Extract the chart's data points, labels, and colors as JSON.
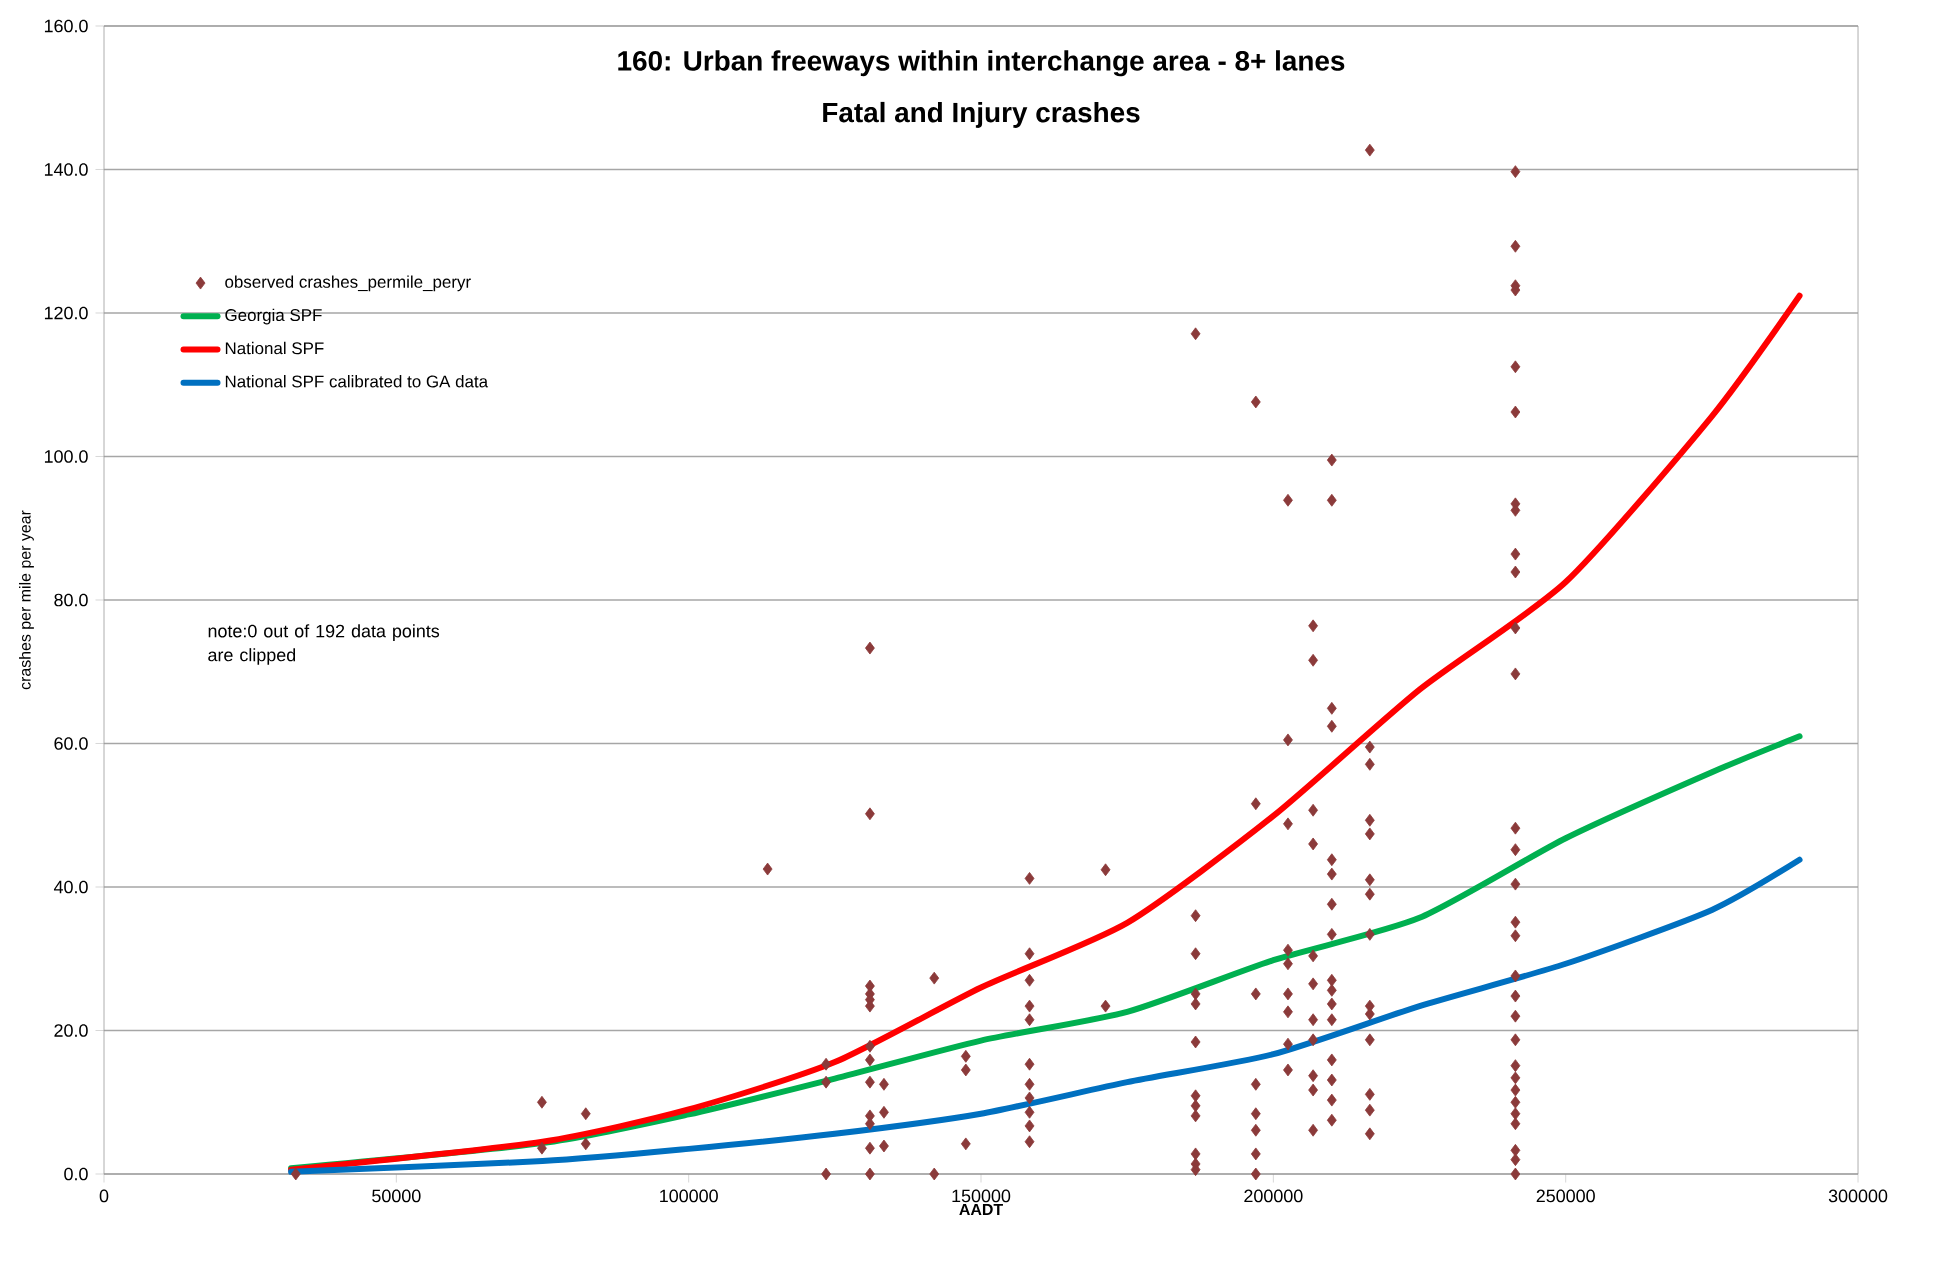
{
  "chart_data": {
    "type": "scatter",
    "title": "160: Urban freeways within interchange area - 8+ lanes",
    "subtitle": "Fatal and Injury crashes",
    "xlabel": "AADT",
    "ylabel": "crashes per mile per year",
    "xlim": [
      0,
      300000
    ],
    "ylim": [
      0,
      160
    ],
    "xticks": [
      0,
      50000,
      100000,
      150000,
      200000,
      250000,
      300000
    ],
    "yticks": [
      {
        "value": 0,
        "label": "0.0"
      },
      {
        "value": 20,
        "label": "20.0"
      },
      {
        "value": 40,
        "label": "40.0"
      },
      {
        "value": 60,
        "label": "60.0"
      },
      {
        "value": 80,
        "label": "80.0"
      },
      {
        "value": 100,
        "label": "100.0"
      },
      {
        "value": 120,
        "label": "120.0"
      },
      {
        "value": 140,
        "label": "140.0"
      },
      {
        "value": 160,
        "label": "160.0"
      }
    ],
    "grid": "y",
    "legend": "top left",
    "annotations": [
      "note:0 out of 192 data points are clipped"
    ],
    "series": [
      {
        "name": "observed crashes_permile_peryr",
        "marker": "diamond",
        "color": "#8b3a3a",
        "x": [
          32800,
          74900,
          74900,
          82400,
          82400,
          113500,
          123500,
          123500,
          123500,
          131000,
          131000,
          131000,
          131000,
          131000,
          131000,
          131000,
          131000,
          131000,
          131000,
          131000,
          131000,
          131000,
          133400,
          133400,
          133400,
          142000,
          142000,
          147400,
          147400,
          147400,
          158300,
          158300,
          158300,
          158300,
          158300,
          158300,
          158300,
          158300,
          158300,
          158300,
          158300,
          171300,
          171300,
          186700,
          186700,
          186700,
          186700,
          186700,
          186700,
          186700,
          186700,
          186700,
          186700,
          186700,
          186700,
          197000,
          197000,
          197000,
          197000,
          197000,
          197000,
          197000,
          197000,
          202500,
          202500,
          202500,
          202500,
          202500,
          202500,
          202500,
          202500,
          202500,
          206800,
          206800,
          206800,
          206800,
          206800,
          206800,
          206800,
          206800,
          206800,
          206800,
          206800,
          210000,
          210000,
          210000,
          210000,
          210000,
          210000,
          210000,
          210000,
          210000,
          210000,
          210000,
          210000,
          210000,
          210000,
          210000,
          210000,
          216500,
          216500,
          216500,
          216500,
          216500,
          216500,
          216500,
          216500,
          216500,
          216500,
          216500,
          216500,
          216500,
          216500,
          241400,
          241400,
          241400,
          241400,
          241400,
          241400,
          241400,
          241400,
          241400,
          241400,
          241400,
          241400,
          241400,
          241400,
          241400,
          241400,
          241400,
          241400,
          241400,
          241400,
          241400,
          241400,
          241400,
          241400,
          241400,
          241400,
          241400,
          241400,
          241400,
          241400
        ],
        "values": [
          0,
          10.0,
          3.6,
          8.4,
          4.2,
          42.5,
          15.3,
          12.8,
          0,
          73.3,
          50.2,
          26.2,
          25.1,
          24.3,
          23.4,
          17.8,
          15.9,
          12.8,
          8.1,
          7.0,
          3.6,
          0,
          12.5,
          8.6,
          3.9,
          27.3,
          0,
          16.4,
          14.5,
          4.2,
          41.2,
          30.7,
          27.0,
          23.4,
          21.5,
          15.3,
          12.5,
          10.6,
          8.6,
          6.7,
          4.5,
          42.4,
          23.4,
          117.1,
          36.0,
          30.7,
          25.1,
          23.7,
          18.4,
          10.9,
          9.5,
          8.1,
          2.8,
          1.4,
          0.6,
          107.6,
          51.6,
          25.1,
          12.5,
          8.4,
          6.1,
          2.8,
          0,
          93.9,
          60.5,
          48.8,
          31.2,
          29.3,
          25.1,
          22.6,
          18.1,
          14.5,
          76.4,
          71.6,
          50.7,
          46.0,
          30.4,
          26.5,
          21.5,
          18.7,
          13.7,
          11.7,
          6.1,
          99.5,
          93.9,
          64.9,
          62.4,
          43.8,
          41.8,
          37.6,
          33.4,
          27.0,
          25.6,
          23.7,
          21.5,
          15.9,
          13.1,
          10.3,
          7.5,
          142.7,
          59.5,
          57.1,
          49.3,
          47.4,
          41.0,
          39.0,
          33.4,
          23.4,
          22.3,
          18.7,
          11.1,
          8.9,
          5.6,
          139.7,
          129.3,
          123.8,
          123.2,
          112.5,
          106.2,
          93.4,
          92.5,
          86.4,
          83.9,
          76.1,
          69.7,
          48.2,
          45.2,
          40.4,
          35.1,
          33.2,
          27.6,
          24.8,
          22.0,
          18.7,
          15.1,
          13.4,
          11.7,
          10.0,
          8.4,
          7.0,
          3.3,
          2.0,
          0
        ]
      },
      {
        "name": "Georgia SPF",
        "type": "line",
        "marker": "none",
        "color": "#00b050",
        "x": [
          32000,
          75000,
          100000,
          125000,
          150000,
          175000,
          200000,
          225000,
          250000,
          275000,
          290000
        ],
        "values": [
          0.8,
          4.3,
          8.3,
          13.3,
          18.6,
          22.6,
          29.8,
          35.7,
          46.8,
          56.0,
          61.0
        ]
      },
      {
        "name": "National SPF",
        "type": "line",
        "marker": "none",
        "color": "#ff0000",
        "x": [
          32000,
          75000,
          100000,
          125000,
          150000,
          175000,
          200000,
          225000,
          250000,
          275000,
          290000
        ],
        "values": [
          0.6,
          4.5,
          9.0,
          15.6,
          26.0,
          35.0,
          49.9,
          67.5,
          82.5,
          105.6,
          122.4
        ]
      },
      {
        "name": "National SPF calibrated to GA data",
        "type": "line",
        "marker": "none",
        "color": "#0070c0",
        "x": [
          32000,
          75000,
          100000,
          125000,
          150000,
          175000,
          200000,
          225000,
          250000,
          275000,
          290000
        ],
        "values": [
          0.3,
          1.8,
          3.5,
          5.6,
          8.4,
          12.8,
          16.7,
          23.4,
          29.3,
          36.8,
          43.8
        ]
      }
    ]
  }
}
